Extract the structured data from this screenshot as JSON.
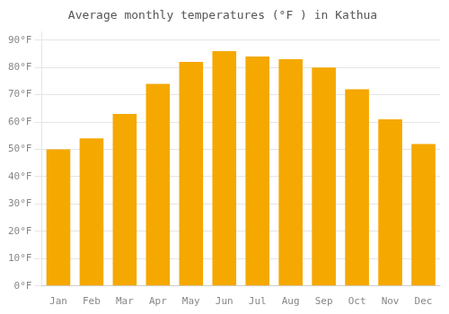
{
  "chart_data": {
    "type": "bar",
    "title": "Average monthly temperatures (°F ) in Kathua",
    "categories": [
      "Jan",
      "Feb",
      "Mar",
      "Apr",
      "May",
      "Jun",
      "Jul",
      "Aug",
      "Sep",
      "Oct",
      "Nov",
      "Dec"
    ],
    "values": [
      50,
      54,
      63,
      74,
      82,
      86,
      84,
      83,
      80,
      72,
      61,
      52
    ],
    "color": "#F5A800",
    "ylim": [
      0,
      93
    ],
    "yticks": [
      {
        "value": 0,
        "label": "0°F"
      },
      {
        "value": 10,
        "label": "10°F"
      },
      {
        "value": 20,
        "label": "20°F"
      },
      {
        "value": 30,
        "label": "30°F"
      },
      {
        "value": 40,
        "label": "40°F"
      },
      {
        "value": 50,
        "label": "50°F"
      },
      {
        "value": 60,
        "label": "60°F"
      },
      {
        "value": 70,
        "label": "70°F"
      },
      {
        "value": 80,
        "label": "80°F"
      },
      {
        "value": 90,
        "label": "90°F"
      }
    ],
    "grid": true
  }
}
